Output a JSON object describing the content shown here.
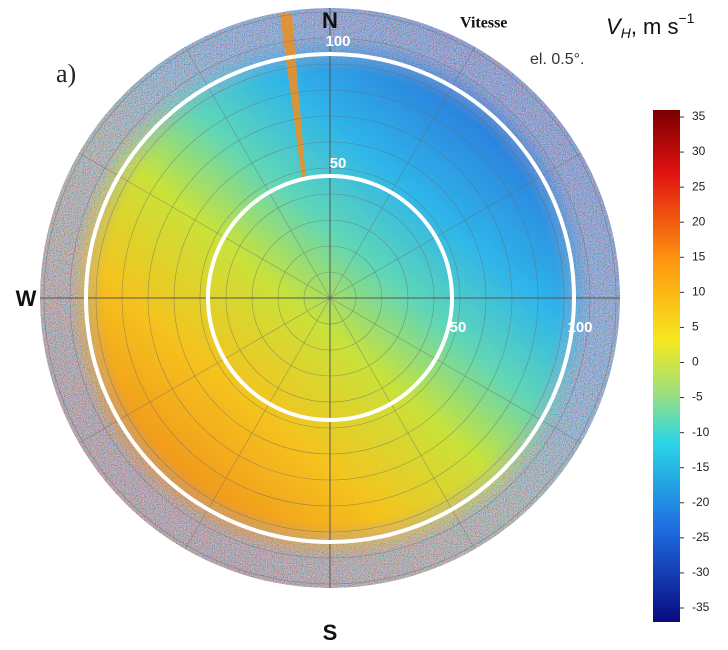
{
  "panel_label": "a)",
  "title": "Vitesse",
  "quantity": {
    "symbol": "V",
    "subscript": "H",
    "unit": ", m s",
    "exponent": "−1"
  },
  "elevation": "el. 0.5°.",
  "compass": {
    "north": "N",
    "south": "S",
    "west": "W"
  },
  "range_labels": {
    "north": [
      100,
      50
    ],
    "east": [
      50,
      100
    ]
  },
  "colorbar": {
    "ticks": [
      35,
      30,
      25,
      20,
      15,
      10,
      5,
      0,
      -5,
      -10,
      -15,
      -20,
      -25,
      -30,
      -35
    ]
  }
}
